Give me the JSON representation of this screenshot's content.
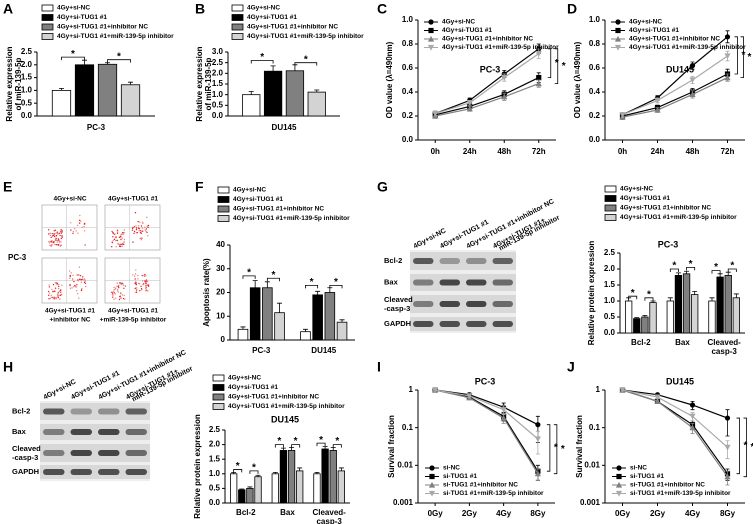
{
  "chart_data": [
    {
      "type": "bar",
      "panel": "A",
      "ylabel": [
        "Relative expression",
        "of miR-139-5p"
      ],
      "categories": [
        "PC-3"
      ],
      "series": [
        {
          "name": "4Gy+si-NC",
          "color": "#ffffff",
          "values": [
            1.0
          ],
          "errors": [
            0.08
          ]
        },
        {
          "name": "4Gy+si-TUG1 #1",
          "color": "#000000",
          "values": [
            2.0
          ],
          "errors": [
            0.18
          ]
        },
        {
          "name": "4Gy+si-TUG1 #1+inhibitor NC",
          "color": "#808080",
          "values": [
            2.02
          ],
          "errors": [
            0.06
          ]
        },
        {
          "name": "4Gy+si-TUG1 #1+miR-139-5p inhibitor",
          "color": "#d3d3d3",
          "values": [
            1.22
          ],
          "errors": [
            0.1
          ]
        }
      ],
      "ylim": [
        0,
        2.5
      ],
      "yticks": [
        {
          "value": 0,
          "label": "0.0"
        },
        {
          "value": 0.5,
          "label": "0.5"
        },
        {
          "value": 1,
          "label": "1.0"
        },
        {
          "value": 1.5,
          "label": "1.5"
        },
        {
          "value": 2,
          "label": "2.0"
        },
        {
          "value": 2.5,
          "label": "2.5"
        }
      ],
      "significance": [
        "*",
        "*"
      ]
    },
    {
      "type": "bar",
      "panel": "B",
      "ylabel": [
        "Relative expression",
        "of miR-139-5p"
      ],
      "categories": [
        "DU145"
      ],
      "series": [
        {
          "name": "4Gy+si-NC",
          "color": "#ffffff",
          "values": [
            1.0
          ],
          "errors": [
            0.15
          ]
        },
        {
          "name": "4Gy+si-TUG1 #1",
          "color": "#000000",
          "values": [
            2.1
          ],
          "errors": [
            0.25
          ]
        },
        {
          "name": "4Gy+si-TUG1 #1+inhibitor NC",
          "color": "#808080",
          "values": [
            2.12
          ],
          "errors": [
            0.28
          ]
        },
        {
          "name": "4Gy+si-TUG1 #1+miR-139-5p inhibitor",
          "color": "#d3d3d3",
          "values": [
            1.12
          ],
          "errors": [
            0.1
          ]
        }
      ],
      "ylim": [
        0,
        3
      ],
      "yticks": [
        {
          "value": 0,
          "label": "0.0"
        },
        {
          "value": 0.5,
          "label": "0.5"
        },
        {
          "value": 1,
          "label": "1.0"
        },
        {
          "value": 1.5,
          "label": "1.5"
        },
        {
          "value": 2,
          "label": "2.0"
        },
        {
          "value": 2.5,
          "label": "2.5"
        },
        {
          "value": 3,
          "label": "3.0"
        }
      ],
      "significance": [
        "*",
        "*"
      ]
    },
    {
      "type": "line",
      "panel": "C",
      "title": "PC-3",
      "ylabel": [
        "OD value (λ=490nm)"
      ],
      "categories": [
        "0h",
        "24h",
        "48h",
        "72h"
      ],
      "series": [
        {
          "name": "4Gy+si-NC",
          "color": "#000000",
          "marker": "circle",
          "values": [
            0.22,
            0.33,
            0.55,
            0.76
          ],
          "errors": [
            0.02,
            0.02,
            0.03,
            0.04
          ]
        },
        {
          "name": "4Gy+si-TUG1 #1",
          "color": "#000000",
          "marker": "square",
          "values": [
            0.21,
            0.28,
            0.38,
            0.52
          ],
          "errors": [
            0.02,
            0.02,
            0.03,
            0.04
          ]
        },
        {
          "name": "4Gy+si-TUG1 #1+inhibitor NC",
          "color": "#808080",
          "marker": "triangle",
          "values": [
            0.2,
            0.26,
            0.36,
            0.47
          ],
          "errors": [
            0.02,
            0.02,
            0.03,
            0.03
          ]
        },
        {
          "name": "4Gy+si-TUG1 #1+miR-139-5p inhibitor",
          "color": "#a9a9a9",
          "marker": "triangle-down",
          "values": [
            0.22,
            0.31,
            0.52,
            0.72
          ],
          "errors": [
            0.02,
            0.02,
            0.03,
            0.04
          ]
        }
      ],
      "ylim": [
        0,
        1
      ],
      "yticks": [
        {
          "value": 0,
          "label": "0.0"
        },
        {
          "value": 0.2,
          "label": "0.2"
        },
        {
          "value": 0.4,
          "label": "0.4"
        },
        {
          "value": 0.6,
          "label": "0.6"
        },
        {
          "value": 0.8,
          "label": "0.8"
        },
        {
          "value": 1,
          "label": "1.0"
        }
      ],
      "significance": [
        "*",
        "*"
      ]
    },
    {
      "type": "line",
      "panel": "D",
      "title": "DU145",
      "ylabel": [
        "OD value (λ=490nm)"
      ],
      "categories": [
        "0h",
        "24h",
        "48h",
        "72h"
      ],
      "series": [
        {
          "name": "4Gy+si-NC",
          "color": "#000000",
          "marker": "circle",
          "values": [
            0.21,
            0.35,
            0.62,
            0.86
          ],
          "errors": [
            0.02,
            0.02,
            0.03,
            0.05
          ]
        },
        {
          "name": "4Gy+si-TUG1 #1",
          "color": "#000000",
          "marker": "square",
          "values": [
            0.2,
            0.27,
            0.4,
            0.55
          ],
          "errors": [
            0.02,
            0.02,
            0.03,
            0.04
          ]
        },
        {
          "name": "4Gy+si-TUG1 #1+inhibitor NC",
          "color": "#808080",
          "marker": "triangle",
          "values": [
            0.19,
            0.25,
            0.38,
            0.52
          ],
          "errors": [
            0.02,
            0.02,
            0.03,
            0.03
          ]
        },
        {
          "name": "4Gy+si-TUG1 #1+miR-139-5p inhibitor",
          "color": "#a9a9a9",
          "marker": "triangle-down",
          "values": [
            0.21,
            0.33,
            0.5,
            0.7
          ],
          "errors": [
            0.02,
            0.02,
            0.03,
            0.04
          ]
        }
      ],
      "ylim": [
        0,
        1
      ],
      "yticks": [
        {
          "value": 0,
          "label": "0.0"
        },
        {
          "value": 0.2,
          "label": "0.2"
        },
        {
          "value": 0.4,
          "label": "0.4"
        },
        {
          "value": 0.6,
          "label": "0.6"
        },
        {
          "value": 0.8,
          "label": "0.8"
        },
        {
          "value": 1,
          "label": "1.0"
        }
      ],
      "significance": [
        "*",
        "*"
      ]
    },
    {
      "type": "flow",
      "panel": "E",
      "top_labels": [
        "4Gy+si-NC",
        "4Gy+si-TUG1 #1"
      ],
      "side_label": "PC-3",
      "bottom_labels": [
        [
          "4Gy+si-TUG1 #1",
          "+inhibitor NC"
        ],
        [
          "4Gy+si-TUG1 #1",
          "+miR-139-5p inhibitor"
        ]
      ]
    },
    {
      "type": "bar",
      "panel": "F",
      "ylabel": [
        "Apoptosis rate(%)"
      ],
      "categories": [
        "PC-3",
        "DU145"
      ],
      "series": [
        {
          "name": "4Gy+si-NC",
          "color": "#ffffff",
          "values": [
            4.5,
            3.5
          ],
          "errors": [
            1,
            1
          ]
        },
        {
          "name": "4Gy+si-TUG1 #1",
          "color": "#000000",
          "values": [
            22,
            19
          ],
          "errors": [
            3,
            1.5
          ]
        },
        {
          "name": "4Gy+si-TUG1 #1+inhibitor NC",
          "color": "#808080",
          "values": [
            22,
            20
          ],
          "errors": [
            2.5,
            2
          ]
        },
        {
          "name": "4Gy+si-TUG1 #1+miR-139-5p inhibitor",
          "color": "#d3d3d3",
          "values": [
            11.5,
            7.5
          ],
          "errors": [
            4,
            1
          ]
        }
      ],
      "ylim": [
        0,
        40
      ],
      "yticks": [
        0,
        10,
        20,
        30,
        40
      ],
      "significance": [
        "*",
        "*",
        "*",
        "*"
      ]
    },
    {
      "type": "blot",
      "panel": "G",
      "lanes": [
        [
          "4Gy+si-NC"
        ],
        [
          "4Gy+si-TUG1 #1"
        ],
        [
          "4Gy+si-TUG1 #1+inhibitor NC"
        ],
        [
          "4Gy+si-TUG1 #1+",
          "miR-139-5p inhibitor"
        ]
      ],
      "rows": [
        [
          "Bcl-2"
        ],
        [
          "Bax"
        ],
        [
          "Cleaved",
          "-casp-3"
        ],
        [
          "GAPDH"
        ]
      ]
    },
    {
      "type": "bar",
      "title": "PC-3",
      "ylabel": [
        "Relative protein expression"
      ],
      "categories": [
        [
          "Bcl-2"
        ],
        [
          "Bax"
        ],
        [
          "Cleaved-",
          "casp-3"
        ]
      ],
      "series": [
        {
          "name": "4Gy+si-NC",
          "color": "#ffffff",
          "values": [
            1.0,
            1.0,
            1.0
          ],
          "errors": [
            0.1,
            0.1,
            0.1
          ]
        },
        {
          "name": "4Gy+si-TUG1 #1",
          "color": "#000000",
          "values": [
            0.45,
            1.8,
            1.75
          ],
          "errors": [
            0.03,
            0.08,
            0.1
          ]
        },
        {
          "name": "4Gy+si-TUG1 #1+inhibitor NC",
          "color": "#808080",
          "values": [
            0.5,
            1.85,
            1.8
          ],
          "errors": [
            0.05,
            0.08,
            0.1
          ]
        },
        {
          "name": "4Gy+si-TUG1 #1+miR-139-5p inhibitor",
          "color": "#d3d3d3",
          "values": [
            0.95,
            1.2,
            1.1
          ],
          "errors": [
            0.05,
            0.1,
            0.12
          ]
        }
      ],
      "ylim": [
        0,
        2.5
      ],
      "yticks": [
        {
          "value": 0,
          "label": "0.0"
        },
        {
          "value": 0.5,
          "label": "0.5"
        },
        {
          "value": 1,
          "label": "1.0"
        },
        {
          "value": 1.5,
          "label": "1.5"
        },
        {
          "value": 2,
          "label": "2.0"
        },
        {
          "value": 2.5,
          "label": "2.5"
        }
      ],
      "significance": [
        "*",
        "*",
        "*",
        "*",
        "*",
        "*"
      ]
    },
    {
      "type": "blot",
      "panel": "H",
      "lanes": [
        [
          "4Gy+si-NC"
        ],
        [
          "4Gy+si-TUG1 #1"
        ],
        [
          "4Gy+si-TUG1 #1+inhibitor NC"
        ],
        [
          "4Gy+si-TUG1 #1+",
          "miR-139-5p inhibitor"
        ]
      ],
      "rows": [
        [
          "Bcl-2"
        ],
        [
          "Bax"
        ],
        [
          "Cleaved",
          "-casp-3"
        ],
        [
          "GAPDH"
        ]
      ]
    },
    {
      "type": "bar",
      "title": "DU145",
      "ylabel": [
        "Relative protein expression"
      ],
      "categories": [
        [
          "Bcl-2"
        ],
        [
          "Bax"
        ],
        [
          "Cleaved-",
          "casp-3"
        ]
      ],
      "series": [
        {
          "name": "4Gy+si-NC",
          "color": "#ffffff",
          "values": [
            1.0,
            1.0,
            1.0
          ],
          "errors": [
            0.05,
            0.05,
            0.05
          ]
        },
        {
          "name": "4Gy+si-TUG1 #1",
          "color": "#000000",
          "values": [
            0.45,
            1.8,
            1.85
          ],
          "errors": [
            0.03,
            0.08,
            0.08
          ]
        },
        {
          "name": "4Gy+si-TUG1 #1+inhibitor NC",
          "color": "#808080",
          "values": [
            0.5,
            1.8,
            1.8
          ],
          "errors": [
            0.05,
            0.1,
            0.1
          ]
        },
        {
          "name": "4Gy+si-TUG1 #1+miR-139-5p inhibitor",
          "color": "#d3d3d3",
          "values": [
            0.9,
            1.1,
            1.1
          ],
          "errors": [
            0.05,
            0.1,
            0.1
          ]
        }
      ],
      "ylim": [
        0,
        2.5
      ],
      "yticks": [
        {
          "value": 0,
          "label": "0.0"
        },
        {
          "value": 0.5,
          "label": "0.5"
        },
        {
          "value": 1,
          "label": "1.0"
        },
        {
          "value": 1.5,
          "label": "1.5"
        },
        {
          "value": 2,
          "label": "2.0"
        },
        {
          "value": 2.5,
          "label": "2.5"
        }
      ],
      "significance": [
        "*",
        "*",
        "*",
        "*",
        "*",
        "*"
      ]
    },
    {
      "type": "line",
      "panel": "I",
      "title": "PC-3",
      "ylabel": [
        "Survival fraction"
      ],
      "categories": [
        "0Gy",
        "2Gy",
        "4Gy",
        "8Gy"
      ],
      "log_scale": true,
      "series": [
        {
          "name": "si-NC",
          "color": "#000000",
          "marker": "circle",
          "values": [
            1,
            0.75,
            0.35,
            0.12
          ],
          "errors": [
            0,
            0.08,
            0.1,
            0.08
          ]
        },
        {
          "name": "si-TUG1 #1",
          "color": "#000000",
          "marker": "square",
          "values": [
            1,
            0.65,
            0.2,
            0.007
          ],
          "errors": [
            0,
            0.05,
            0.05,
            0.003
          ]
        },
        {
          "name": "si-TUG1 #1+inhibitor NC",
          "color": "#808080",
          "marker": "triangle",
          "values": [
            1,
            0.62,
            0.18,
            0.006
          ],
          "errors": [
            0,
            0.06,
            0.05,
            0.002
          ]
        },
        {
          "name": "si-TUG1 #1+miR-139-5p inhibitor",
          "color": "#a9a9a9",
          "marker": "triangle-down",
          "values": [
            1,
            0.7,
            0.3,
            0.05
          ],
          "errors": [
            0,
            0.08,
            0.08,
            0.03
          ]
        }
      ],
      "ylim": [
        0.001,
        1
      ],
      "yticks": [
        0.001,
        0.01,
        0.1,
        1
      ],
      "significance": [
        "*",
        "*"
      ]
    },
    {
      "type": "line",
      "panel": "J",
      "title": "DU145",
      "ylabel": [
        "Survival fraction"
      ],
      "categories": [
        "0Gy",
        "2Gy",
        "4Gy",
        "8Gy"
      ],
      "log_scale": true,
      "series": [
        {
          "name": "si-NC",
          "color": "#000000",
          "marker": "circle",
          "values": [
            1,
            0.75,
            0.4,
            0.18
          ],
          "errors": [
            0,
            0.05,
            0.1,
            0.12
          ]
        },
        {
          "name": "si-TUG1 #1",
          "color": "#000000",
          "marker": "square",
          "values": [
            1,
            0.5,
            0.12,
            0.006
          ],
          "errors": [
            0,
            0.05,
            0.03,
            0.002
          ]
        },
        {
          "name": "si-TUG1 #1+inhibitor NC",
          "color": "#808080",
          "marker": "triangle",
          "values": [
            1,
            0.5,
            0.1,
            0.005
          ],
          "errors": [
            0,
            0.04,
            0.03,
            0.002
          ]
        },
        {
          "name": "si-TUG1 #1+miR-139-5p inhibitor",
          "color": "#a9a9a9",
          "marker": "triangle-down",
          "values": [
            1,
            0.65,
            0.2,
            0.03
          ],
          "errors": [
            0,
            0.06,
            0.05,
            0.015
          ]
        }
      ],
      "ylim": [
        0.001,
        1
      ],
      "yticks": [
        0.001,
        0.01,
        0.1,
        1
      ],
      "significance": [
        "*",
        "*"
      ]
    }
  ]
}
